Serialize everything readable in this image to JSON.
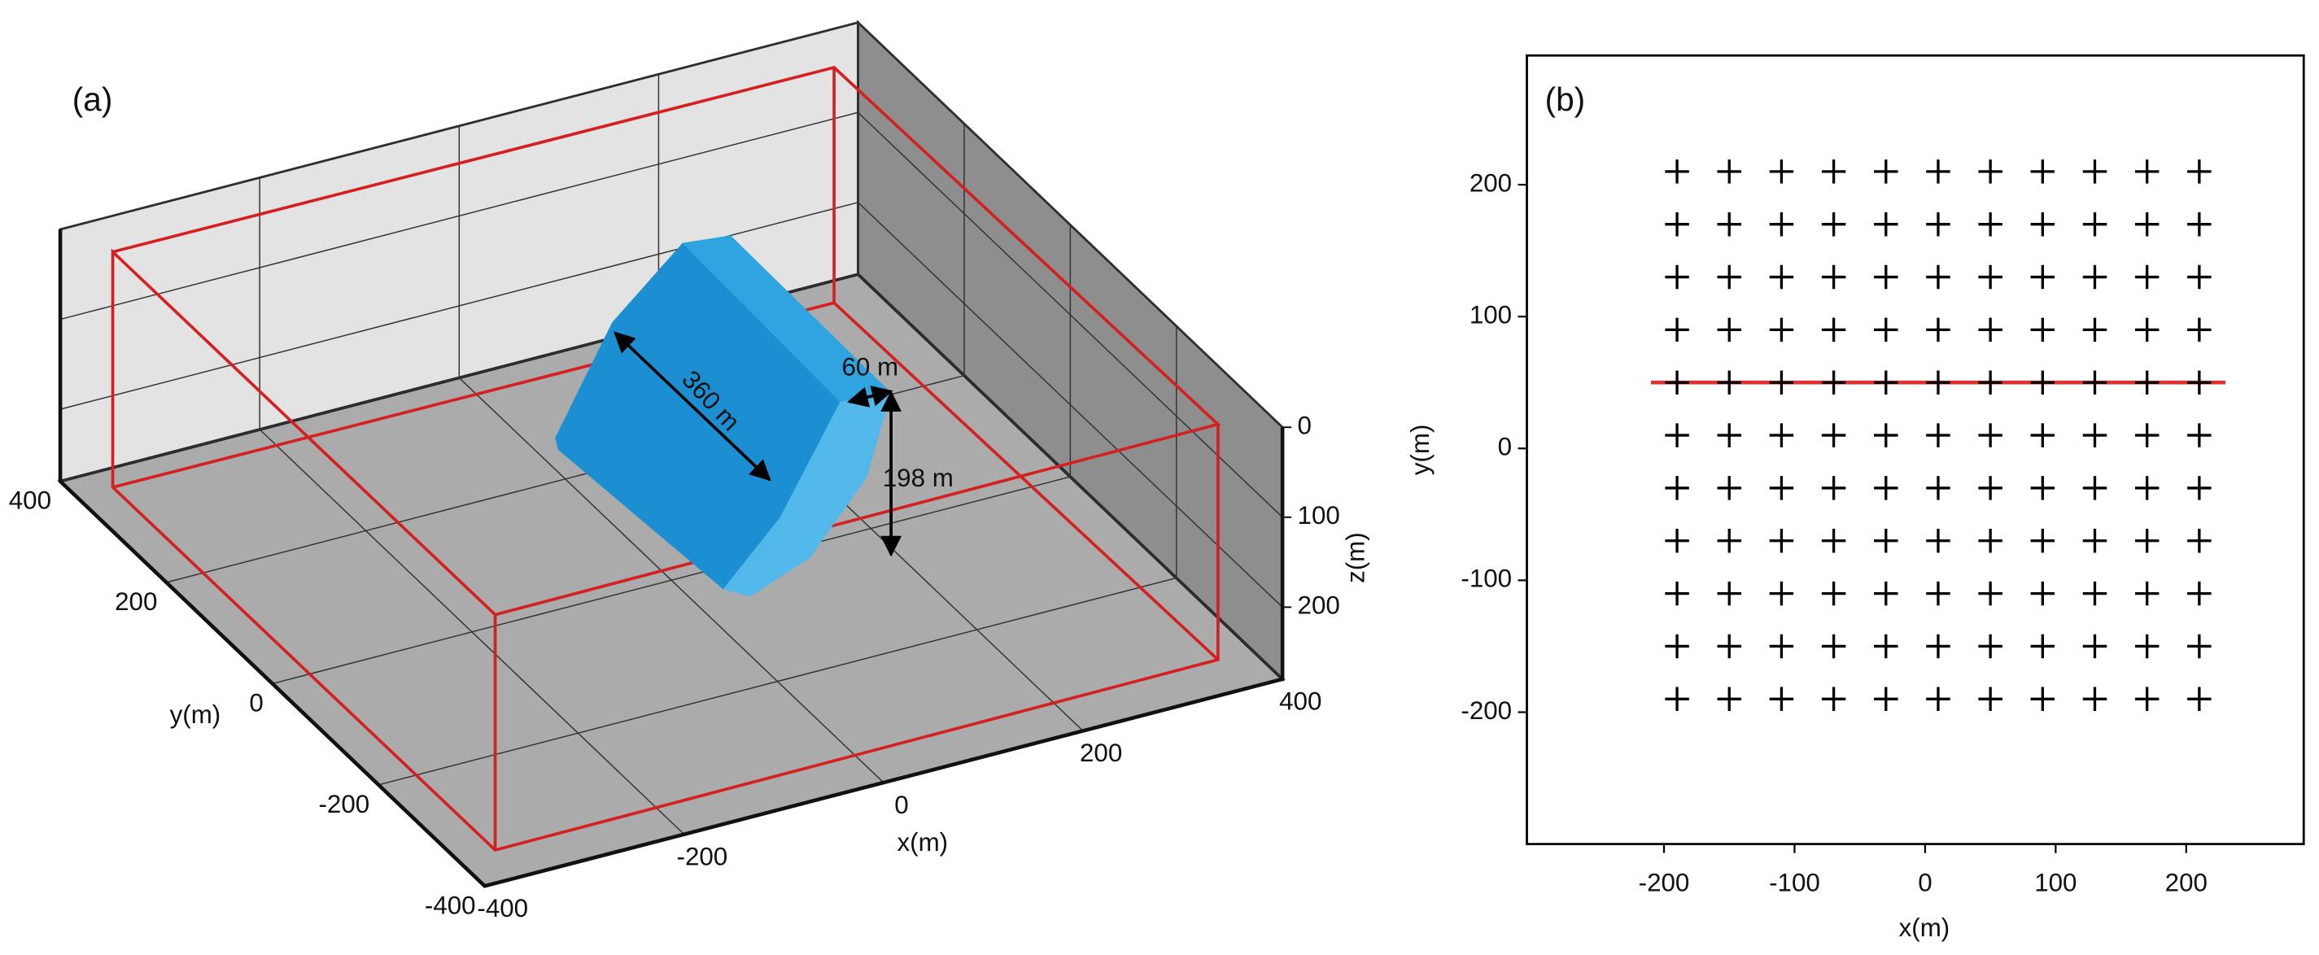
{
  "chart_data": [
    {
      "type": "box3d",
      "panel_label": "(a)",
      "xlabel": "x(m)",
      "ylabel": "y(m)",
      "zlabel": "z(m)",
      "xlim": [
        -400,
        400
      ],
      "ylim": [
        -400,
        400
      ],
      "zlim": [
        0,
        280
      ],
      "xticks": [
        -400,
        -200,
        0,
        200,
        400
      ],
      "yticks": [
        -400,
        -200,
        0,
        200,
        400
      ],
      "zticks": [
        0,
        100,
        200
      ],
      "annotations": [
        "360 m",
        "60 m",
        "198 m"
      ]
    },
    {
      "type": "scatter",
      "panel_label": "(b)",
      "xlabel": "x(m)",
      "ylabel": "y(m)",
      "xlim": [
        -305,
        290
      ],
      "ylim": [
        -300,
        298
      ],
      "xticks": [
        -200,
        -100,
        0,
        100,
        200
      ],
      "yticks": [
        -200,
        -100,
        0,
        100,
        200
      ],
      "grid": false,
      "series": [
        {
          "type": "scatter",
          "marker": "+",
          "color": "#000000",
          "x": [
            -190,
            -150,
            -110,
            -70,
            -30,
            10,
            50,
            90,
            130,
            170,
            210,
            -190,
            -150,
            -110,
            -70,
            -30,
            10,
            50,
            90,
            130,
            170,
            210,
            -190,
            -150,
            -110,
            -70,
            -30,
            10,
            50,
            90,
            130,
            170,
            210,
            -190,
            -150,
            -110,
            -70,
            -30,
            10,
            50,
            90,
            130,
            170,
            210,
            -190,
            -150,
            -110,
            -70,
            -30,
            10,
            50,
            90,
            130,
            170,
            210,
            -190,
            -150,
            -110,
            -70,
            -30,
            10,
            50,
            90,
            130,
            170,
            210,
            -190,
            -150,
            -110,
            -70,
            -30,
            10,
            50,
            90,
            130,
            170,
            210,
            -190,
            -150,
            -110,
            -70,
            -30,
            10,
            50,
            90,
            130,
            170,
            210,
            -190,
            -150,
            -110,
            -70,
            -30,
            10,
            50,
            90,
            130,
            170,
            210,
            -190,
            -150,
            -110,
            -70,
            -30,
            10,
            50,
            90,
            130,
            170,
            210,
            -190,
            -150,
            -110,
            -70,
            -30,
            10,
            50,
            90,
            130,
            170,
            210
          ],
          "y": [
            210,
            210,
            210,
            210,
            210,
            210,
            210,
            210,
            210,
            210,
            210,
            170,
            170,
            170,
            170,
            170,
            170,
            170,
            170,
            170,
            170,
            170,
            130,
            130,
            130,
            130,
            130,
            130,
            130,
            130,
            130,
            130,
            130,
            90,
            90,
            90,
            90,
            90,
            90,
            90,
            90,
            90,
            90,
            90,
            50,
            50,
            50,
            50,
            50,
            50,
            50,
            50,
            50,
            50,
            50,
            10,
            10,
            10,
            10,
            10,
            10,
            10,
            10,
            10,
            10,
            10,
            -30,
            -30,
            -30,
            -30,
            -30,
            -30,
            -30,
            -30,
            -30,
            -30,
            -30,
            -70,
            -70,
            -70,
            -70,
            -70,
            -70,
            -70,
            -70,
            -70,
            -70,
            -70,
            -110,
            -110,
            -110,
            -110,
            -110,
            -110,
            -110,
            -110,
            -110,
            -110,
            -110,
            -150,
            -150,
            -150,
            -150,
            -150,
            -150,
            -150,
            -150,
            -150,
            -150,
            -150,
            -190,
            -190,
            -190,
            -190,
            -190,
            -190,
            -190,
            -190,
            -190,
            -190,
            -190
          ]
        },
        {
          "type": "line",
          "color": "#e03030",
          "x": [
            -210,
            230
          ],
          "y": [
            50,
            50
          ]
        }
      ]
    }
  ]
}
